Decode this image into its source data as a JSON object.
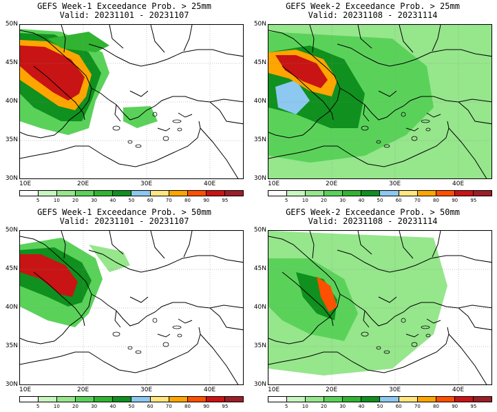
{
  "panels": [
    {
      "id": "w1-25",
      "title": "GEFS Week-1 Exceedance Prob. > 25mm",
      "valid": "Valid: 20231101 - 20231107"
    },
    {
      "id": "w2-25",
      "title": "GEFS Week-2 Exceedance Prob. > 25mm",
      "valid": "Valid: 20231108 - 20231114"
    },
    {
      "id": "w1-50",
      "title": "GEFS Week-1 Exceedance Prob. > 50mm",
      "valid": "Valid: 20231101 - 20231107"
    },
    {
      "id": "w2-50",
      "title": "GEFS Week-2 Exceedance Prob. > 50mm",
      "valid": "Valid: 20231108 - 20231114"
    }
  ],
  "axes": {
    "lat_labels": [
      "50N",
      "45N",
      "40N",
      "35N",
      "30N"
    ],
    "lon_labels": [
      "10E",
      "20E",
      "30E",
      "40E"
    ]
  },
  "colorbar": {
    "ticks": [
      "5",
      "10",
      "20",
      "30",
      "40",
      "50",
      "60",
      "70",
      "80",
      "90",
      "95"
    ],
    "colors": [
      "#ffffff",
      "#c8f5c0",
      "#96e68c",
      "#5ad25a",
      "#32b432",
      "#10901e",
      "#8cc8f0",
      "#ffe680",
      "#ffa500",
      "#ff5000",
      "#c81414",
      "#9b1e28"
    ]
  }
}
